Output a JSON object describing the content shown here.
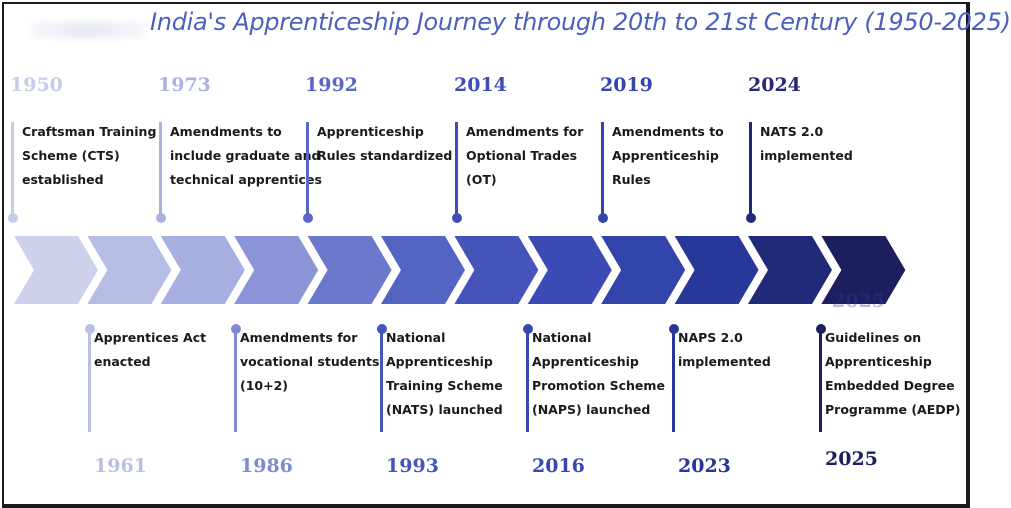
{
  "title": "India's Apprenticeship Journey through 20th to 21st Century (1950-2025)",
  "top_events": [
    {
      "year": "1950",
      "lines": [
        "Craftsman Training",
        "Scheme (CTS)",
        "established"
      ],
      "color": "#c7ccea"
    },
    {
      "year": "1973",
      "lines": [
        "Amendments to",
        "include graduate and",
        "technical apprentices"
      ],
      "color": "#aab3df"
    },
    {
      "year": "1992",
      "lines": [
        "Apprenticeship",
        "Rules standardized"
      ],
      "color": "#5a67c4"
    },
    {
      "year": "2014",
      "lines": [
        "Amendments for",
        "Optional Trades",
        "(OT)"
      ],
      "color": "#3f4db8"
    },
    {
      "year": "2019",
      "lines": [
        "Amendments to",
        "Apprenticeship",
        "Rules"
      ],
      "color": "#3446ac"
    },
    {
      "year": "2024",
      "lines": [
        "NATS 2.0",
        "implemented"
      ],
      "color": "#24287a"
    }
  ],
  "bottom_events": [
    {
      "year": "1961",
      "lines": [
        "Apprentices Act",
        "enacted"
      ],
      "color": "#b9c0e4"
    },
    {
      "year": "1986",
      "lines": [
        "Amendments for",
        "vocational students",
        "(10+2)"
      ],
      "color": "#7f8ad2"
    },
    {
      "year": "1993",
      "lines": [
        "National",
        "Apprenticeship",
        "Training Scheme",
        "(NATS) launched"
      ],
      "color": "#4555b9"
    },
    {
      "year": "2016",
      "lines": [
        "National",
        "Apprenticeship",
        "Promotion Scheme",
        "(NAPS) launched"
      ],
      "color": "#3848b0"
    },
    {
      "year": "2023",
      "lines": [
        "NAPS 2.0",
        "implemented"
      ],
      "color": "#2a3696"
    },
    {
      "year": "2025",
      "lines": [
        "Guidelines on",
        "Apprenticeship",
        "Embedded Degree",
        "Programme (AEDP)"
      ],
      "color": "#1c1f5e"
    }
  ],
  "ghost_year": "2025",
  "chevron_colors": [
    "#cdd1ec",
    "#b5bde4",
    "#a6afdf",
    "#8a94d6",
    "#6b78cc",
    "#5563c3",
    "#4654ba",
    "#3b4ab4",
    "#3243aa",
    "#283898",
    "#212a78",
    "#1c1f5c"
  ]
}
